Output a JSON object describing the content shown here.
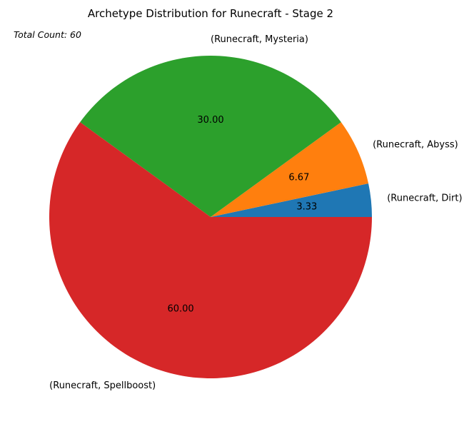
{
  "chart_data": {
    "type": "pie",
    "title": "Archetype Distribution for Runecraft - Stage 2",
    "annotation": "Total Count: 60",
    "categories": [
      "(Runecraft, Dirt)",
      "(Runecraft, Abyss)",
      "(Runecraft, Mysteria)",
      "(Runecraft, Spellboost)"
    ],
    "values": [
      3.33,
      6.67,
      30.0,
      60.0
    ],
    "value_labels": [
      "3.33",
      "6.67",
      "30.00",
      "60.00"
    ],
    "colors": [
      "#1f77b4",
      "#ff7f0e",
      "#2ca02c",
      "#d62728"
    ],
    "start_angle_deg": 0,
    "direction": "counterclockwise"
  }
}
